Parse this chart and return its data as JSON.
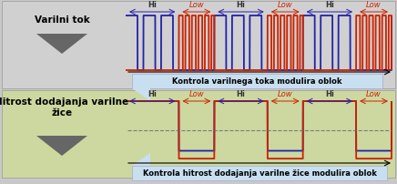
{
  "bg_color": "#c8c8c8",
  "top_panel_bg": "#d0d0d0",
  "bottom_panel_bg": "#ccd8a0",
  "label_top": "Varilni tok",
  "label_bottom": "Hitrost dodajanja varilne\nžice",
  "caption_top": "Kontrola varilnega toka modulira oblok",
  "caption_bottom": "Kontrola hitrost dodajanja varilne žice modulira oblok",
  "hi_color": "#2222aa",
  "lo_color": "#cc2200",
  "arrow_color": "#666666",
  "caption_box_color": "#c8dff0",
  "hi_label_color": "#333333",
  "lo_label_color": "#cc2200",
  "dashed_line_color": "#666666",
  "border_color": "#999999"
}
